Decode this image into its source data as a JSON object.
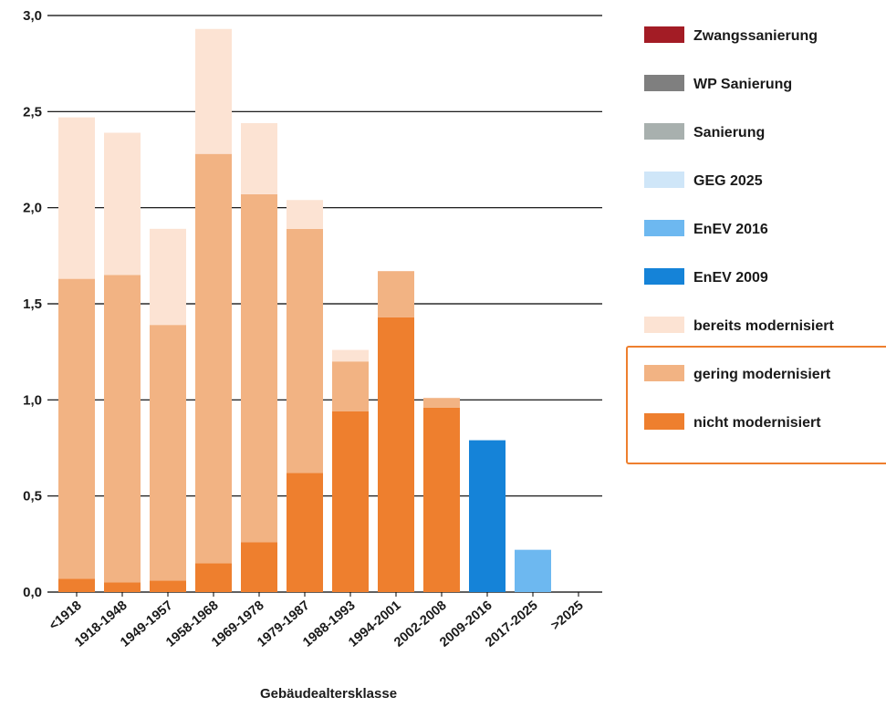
{
  "chart_data": {
    "type": "bar",
    "stacked": true,
    "xlabel": "Gebäudealtersklasse",
    "ylabel": "",
    "ylim": [
      0,
      3.0
    ],
    "yticks": [
      "0,0",
      "0,5",
      "1,0",
      "1,5",
      "2,0",
      "2,5",
      "3,0"
    ],
    "grid": true,
    "legend_position": "right",
    "categories": [
      "<1918",
      "1918-1948",
      "1949-1957",
      "1958-1968",
      "1969-1978",
      "1979-1987",
      "1988-1993",
      "1994-2001",
      "2002-2008",
      "2009-2016",
      "2017-2025",
      ">2025"
    ],
    "series": [
      {
        "name": "Zwangssanierung",
        "color": "#a31c25",
        "values": [
          0,
          0,
          0,
          0,
          0,
          0,
          0,
          0,
          0,
          0,
          0,
          0
        ]
      },
      {
        "name": "WP Sanierung",
        "color": "#7f7f7f",
        "values": [
          0,
          0,
          0,
          0,
          0,
          0,
          0,
          0,
          0,
          0,
          0,
          0
        ]
      },
      {
        "name": "Sanierung",
        "color": "#a8b0ae",
        "values": [
          0,
          0,
          0,
          0,
          0,
          0,
          0,
          0,
          0,
          0,
          0,
          0
        ]
      },
      {
        "name": "GEG 2025",
        "color": "#cfe6f8",
        "values": [
          0,
          0,
          0,
          0,
          0,
          0,
          0,
          0,
          0,
          0,
          0,
          0
        ]
      },
      {
        "name": "EnEV 2016",
        "color": "#6db8f0",
        "values": [
          0,
          0,
          0,
          0,
          0,
          0,
          0,
          0,
          0,
          0,
          0.22,
          0
        ]
      },
      {
        "name": "EnEV 2009",
        "color": "#1583d8",
        "values": [
          0,
          0,
          0,
          0,
          0,
          0,
          0,
          0,
          0,
          0.79,
          0,
          0
        ]
      },
      {
        "name": "bereits modernisiert",
        "color": "#fce3d3",
        "values": [
          0.84,
          0.74,
          0.5,
          0.65,
          0.37,
          0.15,
          0.06,
          0,
          0,
          0,
          0,
          0
        ]
      },
      {
        "name": "gering modernisiert",
        "color": "#f2b383",
        "values": [
          1.56,
          1.6,
          1.33,
          2.13,
          1.81,
          1.27,
          0.26,
          0.24,
          0.05,
          0,
          0,
          0
        ]
      },
      {
        "name": "nicht modernisiert",
        "color": "#ee7f2e",
        "values": [
          0.07,
          0.05,
          0.06,
          0.15,
          0.26,
          0.62,
          0.94,
          1.43,
          0.96,
          0,
          0,
          0
        ]
      }
    ],
    "stack_order_bottom_to_top": [
      "nicht modernisiert",
      "gering modernisiert",
      "bereits modernisiert",
      "EnEV 2009",
      "EnEV 2016",
      "GEG 2025",
      "Sanierung",
      "WP Sanierung",
      "Zwangssanierung"
    ],
    "highlight_box_color": "#ee7f2e",
    "highlighted_legend_entries": [
      "gering modernisiert",
      "nicht modernisiert"
    ]
  }
}
